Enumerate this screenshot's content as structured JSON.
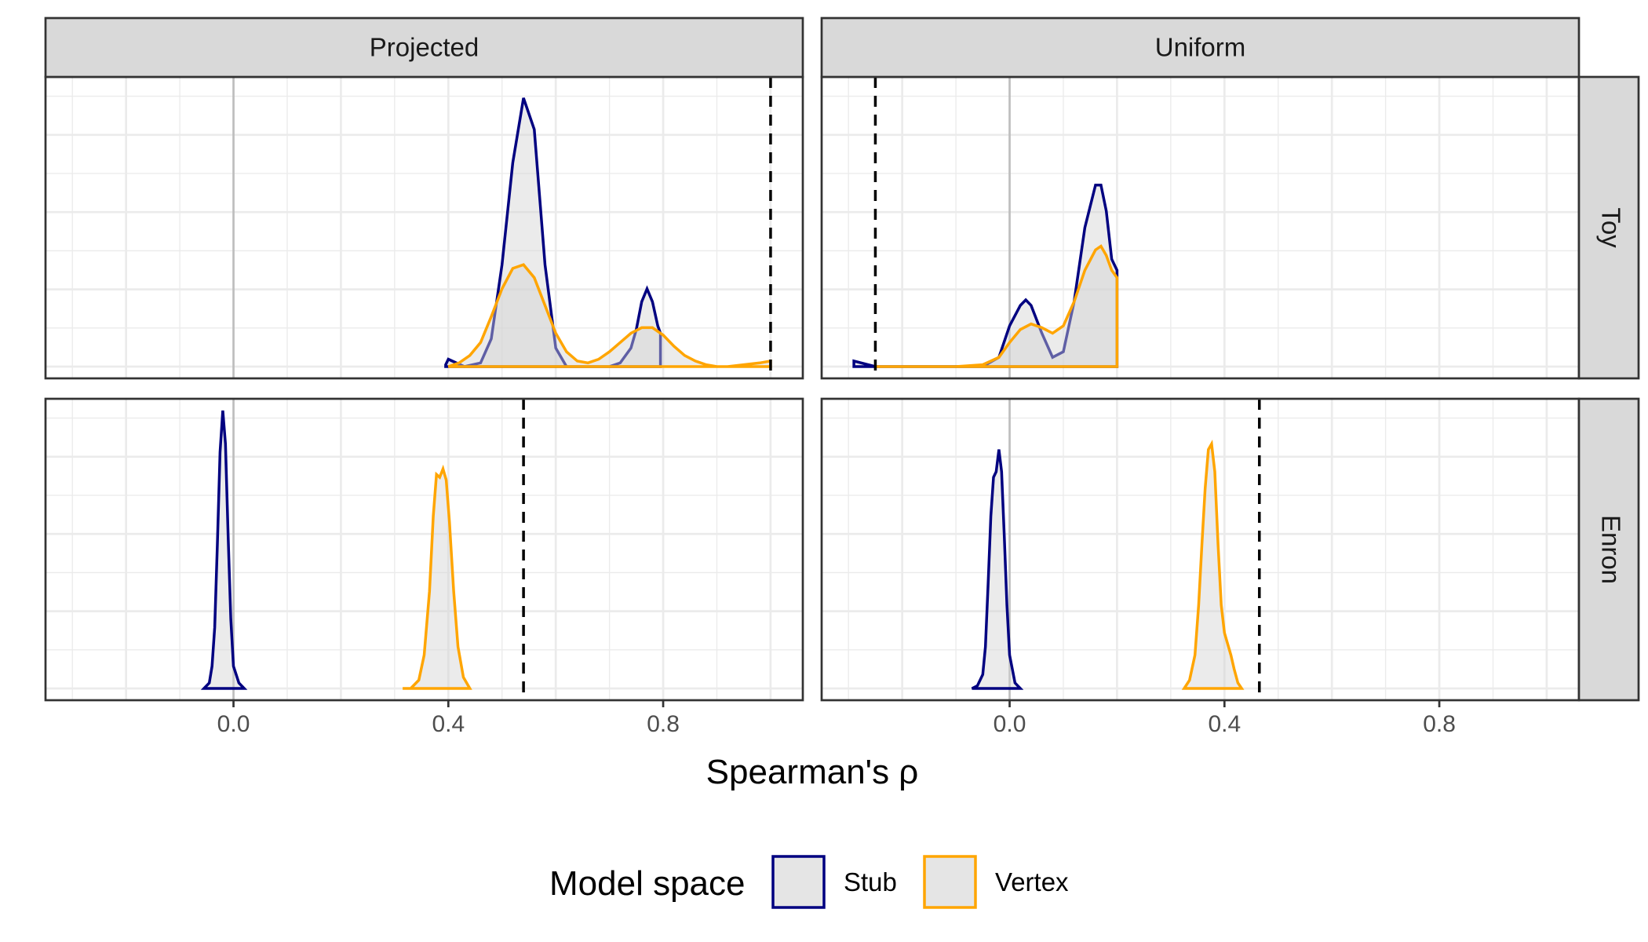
{
  "chart_data": {
    "type": "density",
    "facets": {
      "columns": [
        "Projected",
        "Uniform"
      ],
      "rows": [
        "Toy",
        "Enron"
      ]
    },
    "xlabel": "Spearman's ρ",
    "ylabel": "",
    "xlim": [
      -0.35,
      1.06
    ],
    "x_ticks": [
      0.0,
      0.4,
      0.8
    ],
    "x_tick_labels": [
      "0.0",
      "0.4",
      "0.8"
    ],
    "y_axis_shown": false,
    "grid": true,
    "legend": {
      "title": "Model space",
      "position": "bottom",
      "entries": [
        {
          "name": "Stub",
          "color": "#000080"
        },
        {
          "name": "Vertex",
          "color": "#FFA500"
        }
      ]
    },
    "fill_color": "#d3d3d3",
    "panels": [
      {
        "column": "Projected",
        "row": "Toy",
        "reference_line": 1.0,
        "series": [
          {
            "name": "Stub",
            "color": "#000080",
            "x": [
              0.395,
              0.4,
              0.43,
              0.46,
              0.48,
              0.5,
              0.52,
              0.54,
              0.56,
              0.58,
              0.6,
              0.62,
              0.64,
              0.66,
              0.68,
              0.7,
              0.72,
              0.74,
              0.75,
              0.76,
              0.77,
              0.78,
              0.79,
              0.795
            ],
            "y": [
              0.01,
              0.04,
              0.0,
              0.02,
              0.15,
              0.55,
              1.1,
              1.45,
              1.28,
              0.55,
              0.1,
              0.0,
              0.0,
              0.0,
              0.0,
              0.0,
              0.02,
              0.1,
              0.2,
              0.35,
              0.42,
              0.35,
              0.22,
              0.18
            ]
          },
          {
            "name": "Vertex",
            "color": "#FFA500",
            "x": [
              0.4,
              0.42,
              0.44,
              0.46,
              0.48,
              0.5,
              0.52,
              0.54,
              0.56,
              0.58,
              0.6,
              0.62,
              0.64,
              0.66,
              0.68,
              0.7,
              0.72,
              0.74,
              0.76,
              0.78,
              0.8,
              0.82,
              0.84,
              0.86,
              0.88,
              0.9,
              0.92,
              0.95,
              0.98,
              1.0
            ],
            "y": [
              0.0,
              0.02,
              0.06,
              0.13,
              0.27,
              0.42,
              0.53,
              0.55,
              0.48,
              0.33,
              0.18,
              0.08,
              0.03,
              0.02,
              0.04,
              0.08,
              0.13,
              0.18,
              0.21,
              0.21,
              0.17,
              0.11,
              0.06,
              0.03,
              0.01,
              0.0,
              0.0,
              0.01,
              0.02,
              0.03
            ]
          }
        ]
      },
      {
        "column": "Uniform",
        "row": "Toy",
        "reference_line": -0.25,
        "series": [
          {
            "name": "Stub",
            "color": "#000080",
            "x": [
              -0.29,
              -0.25,
              -0.2,
              -0.1,
              -0.05,
              -0.02,
              0.0,
              0.02,
              0.03,
              0.04,
              0.06,
              0.08,
              0.1,
              0.12,
              0.14,
              0.16,
              0.17,
              0.18,
              0.19,
              0.2
            ],
            "y": [
              0.03,
              0.0,
              0.0,
              0.0,
              0.0,
              0.05,
              0.22,
              0.33,
              0.36,
              0.33,
              0.18,
              0.05,
              0.08,
              0.35,
              0.75,
              0.98,
              0.98,
              0.84,
              0.58,
              0.52
            ]
          },
          {
            "name": "Vertex",
            "color": "#FFA500",
            "x": [
              -0.25,
              -0.2,
              -0.1,
              -0.05,
              -0.02,
              0.0,
              0.02,
              0.04,
              0.06,
              0.08,
              0.1,
              0.12,
              0.14,
              0.16,
              0.17,
              0.18,
              0.19,
              0.2
            ],
            "y": [
              0.0,
              0.0,
              0.0,
              0.01,
              0.05,
              0.13,
              0.2,
              0.23,
              0.21,
              0.18,
              0.22,
              0.35,
              0.52,
              0.63,
              0.65,
              0.6,
              0.52,
              0.48
            ]
          }
        ]
      },
      {
        "column": "Projected",
        "row": "Enron",
        "reference_line": 0.54,
        "series": [
          {
            "name": "Stub",
            "color": "#000080",
            "x": [
              -0.055,
              -0.045,
              -0.04,
              -0.035,
              -0.03,
              -0.025,
              -0.02,
              -0.015,
              -0.01,
              -0.005,
              0.0,
              0.01,
              0.02
            ],
            "y": [
              0.0,
              0.02,
              0.08,
              0.22,
              0.52,
              0.85,
              1.0,
              0.88,
              0.55,
              0.25,
              0.08,
              0.02,
              0.0
            ]
          },
          {
            "name": "Vertex",
            "color": "#FFA500",
            "x": [
              0.315,
              0.33,
              0.345,
              0.355,
              0.365,
              0.372,
              0.378,
              0.384,
              0.39,
              0.396,
              0.402,
              0.41,
              0.418,
              0.428,
              0.44
            ],
            "y": [
              0.0,
              0.0,
              0.03,
              0.12,
              0.35,
              0.62,
              0.77,
              0.76,
              0.79,
              0.75,
              0.6,
              0.35,
              0.15,
              0.04,
              0.0
            ]
          }
        ]
      },
      {
        "column": "Uniform",
        "row": "Enron",
        "reference_line": 0.465,
        "series": [
          {
            "name": "Stub",
            "color": "#000080",
            "x": [
              -0.07,
              -0.06,
              -0.05,
              -0.045,
              -0.04,
              -0.035,
              -0.03,
              -0.025,
              -0.02,
              -0.015,
              -0.01,
              -0.005,
              0.0,
              0.01,
              0.02
            ],
            "y": [
              0.0,
              0.01,
              0.05,
              0.15,
              0.38,
              0.62,
              0.76,
              0.78,
              0.86,
              0.78,
              0.55,
              0.3,
              0.12,
              0.02,
              0.0
            ]
          },
          {
            "name": "Vertex",
            "color": "#FFA500",
            "x": [
              0.325,
              0.335,
              0.345,
              0.352,
              0.358,
              0.364,
              0.37,
              0.376,
              0.382,
              0.388,
              0.394,
              0.4,
              0.406,
              0.412,
              0.418,
              0.425,
              0.432
            ],
            "y": [
              0.0,
              0.03,
              0.12,
              0.3,
              0.52,
              0.72,
              0.86,
              0.88,
              0.78,
              0.52,
              0.3,
              0.2,
              0.16,
              0.12,
              0.07,
              0.02,
              0.0
            ]
          }
        ]
      }
    ]
  }
}
